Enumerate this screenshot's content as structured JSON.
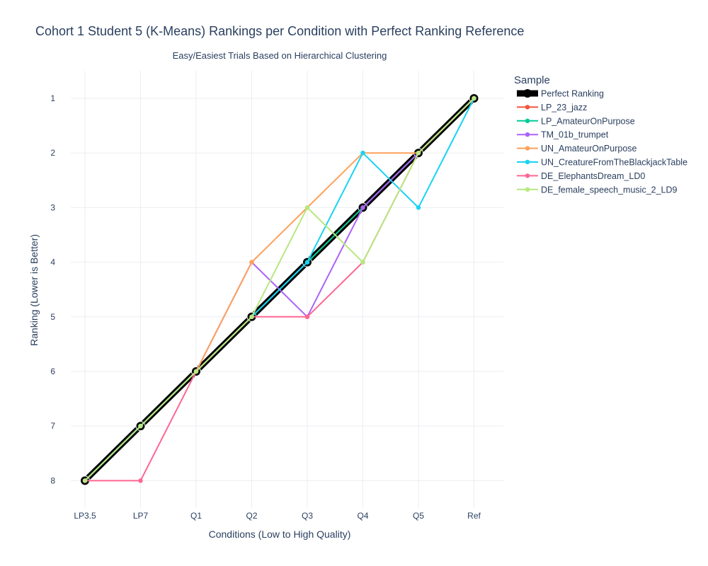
{
  "chart_data": {
    "type": "line",
    "title": "Cohort 1 Student 5 (K-Means) Rankings per Condition with Perfect Ranking Reference",
    "subtitle": "Easy/Easiest Trials Based on Hierarchical Clustering",
    "xlabel": "Conditions (Low to High Quality)",
    "ylabel": "Ranking (Lower is Better)",
    "categories": [
      "LP3.5",
      "LP7",
      "Q1",
      "Q2",
      "Q3",
      "Q4",
      "Q5",
      "Ref"
    ],
    "y_ticks": [
      1,
      2,
      3,
      4,
      5,
      6,
      7,
      8
    ],
    "ylim": [
      8.45,
      0.5
    ],
    "y_reversed": true,
    "grid": true,
    "legend_title": "Sample",
    "legend_position": "right",
    "series": [
      {
        "name": "Perfect Ranking",
        "color": "#000000",
        "reference": true,
        "values": [
          8,
          7,
          6,
          5,
          4,
          3,
          2,
          1
        ]
      },
      {
        "name": "LP_23_jazz",
        "color": "#EF553B",
        "values": [
          8,
          7,
          6,
          5,
          4,
          3,
          2,
          1
        ]
      },
      {
        "name": "LP_AmateurOnPurpose",
        "color": "#00CC96",
        "values": [
          8,
          7,
          6,
          5,
          4,
          3,
          2,
          1
        ]
      },
      {
        "name": "TM_01b_trumpet",
        "color": "#AB63FA",
        "values": [
          8,
          7,
          6,
          4,
          5,
          3,
          2,
          1
        ]
      },
      {
        "name": "UN_AmateurOnPurpose",
        "color": "#FFA15A",
        "values": [
          8,
          7,
          6,
          4,
          3,
          2,
          2,
          1
        ]
      },
      {
        "name": "UN_CreatureFromTheBlackjackTable",
        "color": "#19D3F3",
        "values": [
          8,
          7,
          6,
          5,
          4,
          2,
          3,
          1
        ]
      },
      {
        "name": "DE_ElephantsDream_LD0",
        "color": "#FF6692",
        "values": [
          8,
          8,
          6,
          5,
          5,
          4,
          2,
          1
        ]
      },
      {
        "name": "DE_female_speech_music_2_LD9",
        "color": "#B6E880",
        "values": [
          8,
          7,
          6,
          5,
          3,
          4,
          2,
          1
        ]
      }
    ]
  }
}
